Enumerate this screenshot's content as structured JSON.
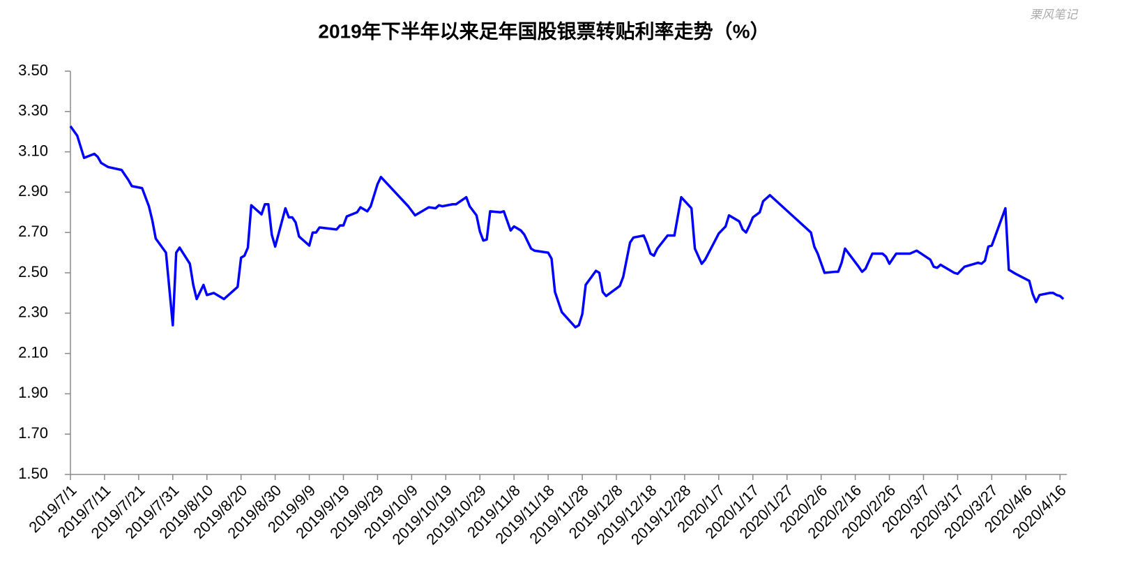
{
  "chart_data": {
    "type": "line",
    "title": "2019年下半年以来足年国股银票转贴利率走势（%）",
    "watermark": "栗风笔记",
    "color": "#0000ff",
    "grid": false,
    "xlim": [
      "2019/7/1",
      "2020/4/18"
    ],
    "xticks": [
      "2019/7/1",
      "2019/7/11",
      "2019/7/21",
      "2019/7/31",
      "2019/8/10",
      "2019/8/20",
      "2019/8/30",
      "2019/9/9",
      "2019/9/19",
      "2019/9/29",
      "2019/10/9",
      "2019/10/19",
      "2019/10/29",
      "2019/11/8",
      "2019/11/18",
      "2019/11/28",
      "2019/12/8",
      "2019/12/18",
      "2019/12/28",
      "2020/1/7",
      "2020/1/17",
      "2020/1/27",
      "2020/2/6",
      "2020/2/16",
      "2020/2/26",
      "2020/3/7",
      "2020/3/17",
      "2020/3/27",
      "2020/4/6",
      "2020/4/16"
    ],
    "ylim": [
      1.5,
      3.5
    ],
    "yticks": [
      {
        "value": 1.5,
        "label": "1.50"
      },
      {
        "value": 1.7,
        "label": "1.70"
      },
      {
        "value": 1.9,
        "label": "1.90"
      },
      {
        "value": 2.1,
        "label": "2.10"
      },
      {
        "value": 2.3,
        "label": "2.30"
      },
      {
        "value": 2.5,
        "label": "2.50"
      },
      {
        "value": 2.7,
        "label": "2.70"
      },
      {
        "value": 2.9,
        "label": "2.90"
      },
      {
        "value": 3.1,
        "label": "3.10"
      },
      {
        "value": 3.3,
        "label": "3.30"
      },
      {
        "value": 3.5,
        "label": "3.50"
      }
    ],
    "x": [
      "2019/7/1",
      "2019/7/3",
      "2019/7/5",
      "2019/7/8",
      "2019/7/9",
      "2019/7/10",
      "2019/7/12",
      "2019/7/16",
      "2019/7/18",
      "2019/7/19",
      "2019/7/22",
      "2019/7/24",
      "2019/7/25",
      "2019/7/26",
      "2019/7/29",
      "2019/7/31",
      "2019/8/1",
      "2019/8/2",
      "2019/8/5",
      "2019/8/6",
      "2019/8/7",
      "2019/8/9",
      "2019/8/10",
      "2019/8/12",
      "2019/8/15",
      "2019/8/19",
      "2019/8/20",
      "2019/8/21",
      "2019/8/22",
      "2019/8/23",
      "2019/8/26",
      "2019/8/27",
      "2019/8/28",
      "2019/8/29",
      "2019/8/30",
      "2019/9/2",
      "2019/9/3",
      "2019/9/4",
      "2019/9/5",
      "2019/9/6",
      "2019/9/9",
      "2019/9/10",
      "2019/9/11",
      "2019/9/12",
      "2019/9/17",
      "2019/9/18",
      "2019/9/19",
      "2019/9/20",
      "2019/9/23",
      "2019/9/24",
      "2019/9/25",
      "2019/9/26",
      "2019/9/27",
      "2019/9/29",
      "2019/9/30",
      "2019/10/8",
      "2019/10/10",
      "2019/10/14",
      "2019/10/16",
      "2019/10/17",
      "2019/10/18",
      "2019/10/21",
      "2019/10/22",
      "2019/10/25",
      "2019/10/26",
      "2019/10/28",
      "2019/10/29",
      "2019/10/30",
      "2019/10/31",
      "2019/11/1",
      "2019/11/4",
      "2019/11/5",
      "2019/11/7",
      "2019/11/8",
      "2019/11/10",
      "2019/11/11",
      "2019/11/13",
      "2019/11/14",
      "2019/11/18",
      "2019/11/19",
      "2019/11/20",
      "2019/11/22",
      "2019/11/26",
      "2019/11/27",
      "2019/11/28",
      "2019/11/29",
      "2019/12/2",
      "2019/12/3",
      "2019/12/4",
      "2019/12/5",
      "2019/12/9",
      "2019/12/10",
      "2019/12/12",
      "2019/12/13",
      "2019/12/16",
      "2019/12/17",
      "2019/12/18",
      "2019/12/19",
      "2019/12/20",
      "2019/12/23",
      "2019/12/25",
      "2019/12/27",
      "2019/12/30",
      "2019/12/31",
      "2020/1/2",
      "2020/1/3",
      "2020/1/7",
      "2020/1/9",
      "2020/1/10",
      "2020/1/13",
      "2020/1/14",
      "2020/1/15",
      "2020/1/16",
      "2020/1/17",
      "2020/1/19",
      "2020/1/20",
      "2020/1/22",
      "2020/2/3",
      "2020/2/4",
      "2020/2/5",
      "2020/2/7",
      "2020/2/10",
      "2020/2/11",
      "2020/2/12",
      "2020/2/13",
      "2020/2/17",
      "2020/2/18",
      "2020/2/19",
      "2020/2/21",
      "2020/2/24",
      "2020/2/25",
      "2020/2/26",
      "2020/2/27",
      "2020/2/28",
      "2020/3/3",
      "2020/3/5",
      "2020/3/9",
      "2020/3/10",
      "2020/3/11",
      "2020/3/12",
      "2020/3/13",
      "2020/3/16",
      "2020/3/17",
      "2020/3/19",
      "2020/3/23",
      "2020/3/24",
      "2020/3/25",
      "2020/3/26",
      "2020/3/27",
      "2020/3/31",
      "2020/4/1",
      "2020/4/3",
      "2020/4/7",
      "2020/4/8",
      "2020/4/9",
      "2020/4/10",
      "2020/4/13",
      "2020/4/14",
      "2020/4/15",
      "2020/4/16",
      "2020/4/17"
    ],
    "values": [
      3.227,
      3.18,
      3.07,
      3.09,
      3.075,
      3.045,
      3.025,
      3.01,
      2.96,
      2.93,
      2.92,
      2.83,
      2.76,
      2.67,
      2.6,
      2.24,
      2.6,
      2.625,
      2.545,
      2.44,
      2.37,
      2.44,
      2.39,
      2.4,
      2.37,
      2.43,
      2.575,
      2.585,
      2.625,
      2.835,
      2.79,
      2.84,
      2.84,
      2.69,
      2.63,
      2.82,
      2.775,
      2.775,
      2.75,
      2.68,
      2.635,
      2.7,
      2.7,
      2.725,
      2.715,
      2.735,
      2.735,
      2.78,
      2.8,
      2.825,
      2.815,
      2.805,
      2.83,
      2.94,
      2.975,
      2.83,
      2.785,
      2.825,
      2.82,
      2.835,
      2.83,
      2.84,
      2.84,
      2.875,
      2.83,
      2.785,
      2.705,
      2.66,
      2.665,
      2.805,
      2.8,
      2.805,
      2.71,
      2.73,
      2.71,
      2.69,
      2.62,
      2.61,
      2.6,
      2.57,
      2.405,
      2.305,
      2.23,
      2.24,
      2.295,
      2.44,
      2.51,
      2.5,
      2.405,
      2.385,
      2.435,
      2.48,
      2.65,
      2.675,
      2.685,
      2.645,
      2.595,
      2.585,
      2.62,
      2.685,
      2.685,
      2.875,
      2.82,
      2.62,
      2.545,
      2.565,
      2.695,
      2.73,
      2.785,
      2.755,
      2.715,
      2.7,
      2.735,
      2.775,
      2.8,
      2.855,
      2.885,
      2.7,
      2.63,
      2.595,
      2.5,
      2.505,
      2.505,
      2.55,
      2.62,
      2.53,
      2.505,
      2.52,
      2.595,
      2.595,
      2.58,
      2.545,
      2.57,
      2.595,
      2.595,
      2.61,
      2.565,
      2.53,
      2.525,
      2.54,
      2.53,
      2.5,
      2.495,
      2.53,
      2.55,
      2.545,
      2.56,
      2.63,
      2.635,
      2.82,
      2.515,
      2.495,
      2.46,
      2.395,
      2.355,
      2.39,
      2.4,
      2.4,
      2.39,
      2.385,
      2.37
    ]
  }
}
